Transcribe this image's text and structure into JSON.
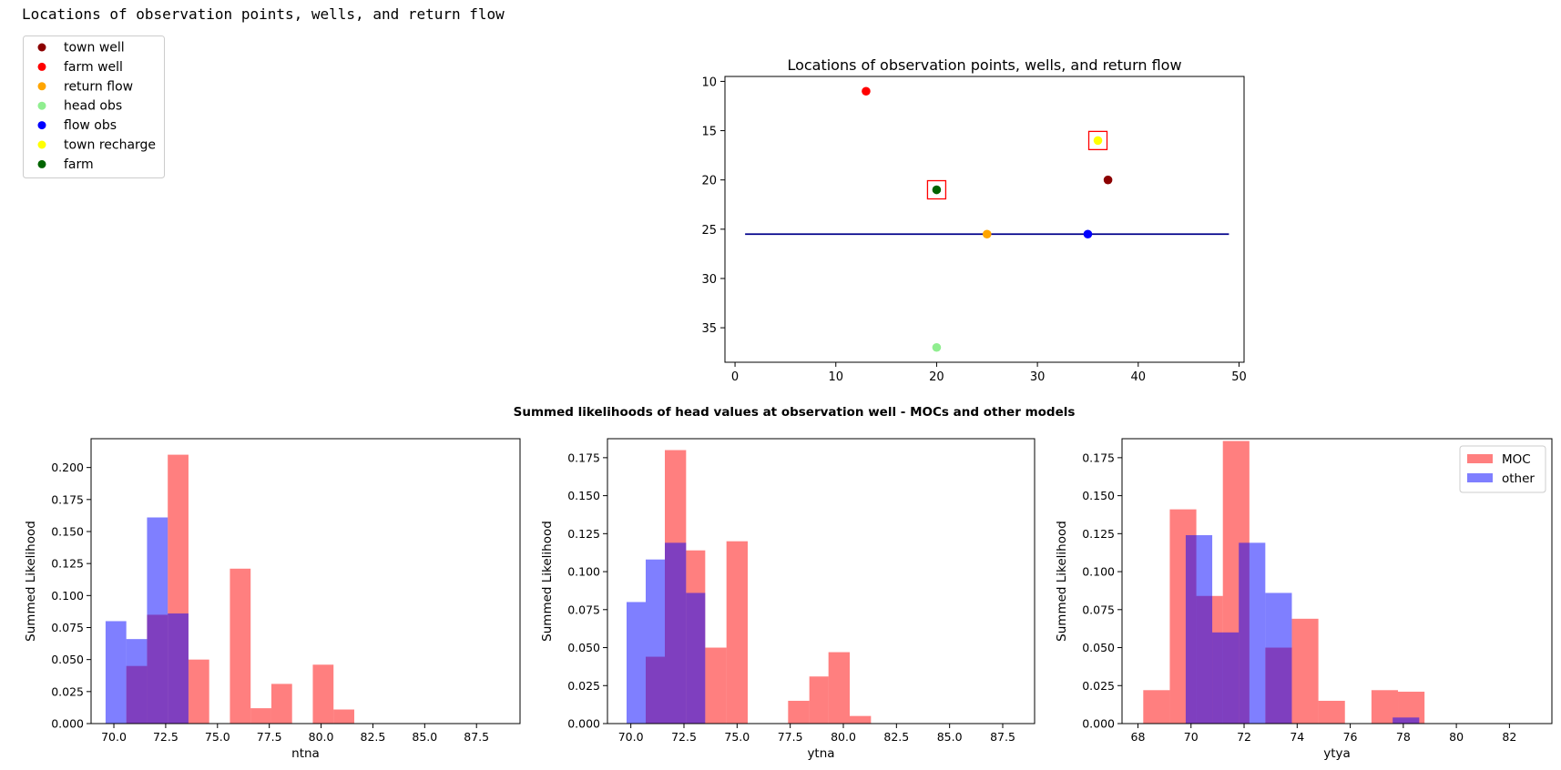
{
  "page": {
    "heading": "Locations of observation points, wells, and return flow"
  },
  "chart_data": [
    {
      "type": "legend",
      "entries": [
        {
          "label": "town well",
          "color": "#8b0000"
        },
        {
          "label": "farm well",
          "color": "#ff0000"
        },
        {
          "label": "return flow",
          "color": "#ffa500"
        },
        {
          "label": "head obs",
          "color": "#90ee90"
        },
        {
          "label": "flow obs",
          "color": "#0000ff"
        },
        {
          "label": "town recharge",
          "color": "#ffff00"
        },
        {
          "label": "farm",
          "color": "#006400"
        }
      ]
    },
    {
      "type": "scatter",
      "title": "Locations of observation points, wells, and return flow",
      "xlim": [
        -1,
        50.5
      ],
      "ylim": [
        38.5,
        9.5
      ],
      "y_inverted": true,
      "xticks": [
        0,
        10,
        20,
        30,
        40,
        50
      ],
      "yticks": [
        10,
        15,
        20,
        25,
        30,
        35
      ],
      "points": [
        {
          "label": "town well",
          "x": 37,
          "y": 20,
          "color": "#8b0000",
          "highlighted": false
        },
        {
          "label": "farm well",
          "x": 13,
          "y": 11,
          "color": "#ff0000",
          "highlighted": false
        },
        {
          "label": "return flow",
          "x": 25,
          "y": 25.5,
          "color": "#ffa500",
          "highlighted": false
        },
        {
          "label": "head obs",
          "x": 20,
          "y": 37,
          "color": "#90ee90",
          "highlighted": false
        },
        {
          "label": "flow obs",
          "x": 35,
          "y": 25.5,
          "color": "#0000ff",
          "highlighted": false
        },
        {
          "label": "town recharge",
          "x": 36,
          "y": 16,
          "color": "#ffff00",
          "highlighted": true
        },
        {
          "label": "farm",
          "x": 20,
          "y": 21,
          "color": "#006400",
          "highlighted": true
        }
      ],
      "line": {
        "x": [
          1,
          49
        ],
        "y": [
          25.5,
          25.5
        ],
        "color": "#00008b"
      },
      "highlight_color": "#ff0000"
    },
    {
      "type": "bar",
      "suptitle": "Summed likelihoods of head values at observation well - MOCs and other models",
      "panels": [
        {
          "xlabel": "ntna",
          "ylabel": "Summed Likelihood",
          "xlim": [
            68.9,
            89.6
          ],
          "ylim": [
            0,
            0.2225
          ],
          "xticks": [
            70.0,
            72.5,
            75.0,
            77.5,
            80.0,
            82.5,
            85.0,
            87.5
          ],
          "xtick_labels": [
            "70.0",
            "72.5",
            "75.0",
            "77.5",
            "80.0",
            "82.5",
            "85.0",
            "87.5"
          ],
          "yticks": [
            0,
            0.025,
            0.05,
            0.075,
            0.1,
            0.125,
            0.15,
            0.175,
            0.2
          ],
          "ytick_labels": [
            "0.000",
            "0.025",
            "0.050",
            "0.075",
            "0.100",
            "0.125",
            "0.150",
            "0.175",
            "0.200"
          ],
          "series": [
            {
              "name": "MOC",
              "color": "#ff0000",
              "alpha": 0.5,
              "bins": [
                [
                  70.6,
                  71.6,
                  0.045
                ],
                [
                  71.6,
                  72.6,
                  0.085
                ],
                [
                  72.6,
                  73.6,
                  0.21
                ],
                [
                  73.6,
                  74.6,
                  0.05
                ],
                [
                  75.6,
                  76.6,
                  0.121
                ],
                [
                  76.6,
                  77.6,
                  0.012
                ],
                [
                  77.6,
                  78.6,
                  0.031
                ],
                [
                  79.6,
                  80.6,
                  0.046
                ],
                [
                  80.6,
                  81.6,
                  0.011
                ]
              ]
            },
            {
              "name": "other",
              "color": "#0000ff",
              "alpha": 0.5,
              "bins": [
                [
                  69.6,
                  70.6,
                  0.08
                ],
                [
                  70.6,
                  71.6,
                  0.066
                ],
                [
                  71.6,
                  72.6,
                  0.161
                ],
                [
                  72.6,
                  73.6,
                  0.086
                ]
              ]
            }
          ]
        },
        {
          "xlabel": "ytna",
          "ylabel": "Summed Likelihood",
          "xlim": [
            68.9,
            89.0
          ],
          "ylim": [
            0,
            0.1875
          ],
          "xticks": [
            70.0,
            72.5,
            75.0,
            77.5,
            80.0,
            82.5,
            85.0,
            87.5
          ],
          "xtick_labels": [
            "70.0",
            "72.5",
            "75.0",
            "77.5",
            "80.0",
            "82.5",
            "85.0",
            "87.5"
          ],
          "yticks": [
            0,
            0.025,
            0.05,
            0.075,
            0.1,
            0.125,
            0.15,
            0.175
          ],
          "ytick_labels": [
            "0.000",
            "0.025",
            "0.050",
            "0.075",
            "0.100",
            "0.125",
            "0.150",
            "0.175"
          ],
          "series": [
            {
              "name": "MOC",
              "color": "#ff0000",
              "alpha": 0.5,
              "bins": [
                [
                  70.7,
                  71.6,
                  0.044
                ],
                [
                  71.6,
                  72.6,
                  0.18
                ],
                [
                  72.6,
                  73.5,
                  0.114
                ],
                [
                  73.5,
                  74.5,
                  0.05
                ],
                [
                  74.5,
                  75.5,
                  0.12
                ],
                [
                  77.4,
                  78.4,
                  0.015
                ],
                [
                  78.4,
                  79.3,
                  0.031
                ],
                [
                  79.3,
                  80.3,
                  0.047
                ],
                [
                  80.3,
                  81.3,
                  0.005
                ]
              ]
            },
            {
              "name": "other",
              "color": "#0000ff",
              "alpha": 0.5,
              "bins": [
                [
                  69.8,
                  70.7,
                  0.08
                ],
                [
                  70.7,
                  71.6,
                  0.108
                ],
                [
                  71.6,
                  72.6,
                  0.119
                ],
                [
                  72.6,
                  73.5,
                  0.086
                ]
              ]
            }
          ]
        },
        {
          "xlabel": "ytya",
          "ylabel": "Summed Likelihood",
          "xlim": [
            67.4,
            83.6
          ],
          "ylim": [
            0,
            0.1875
          ],
          "xticks": [
            68,
            70,
            72,
            74,
            76,
            78,
            80,
            82
          ],
          "xtick_labels": [
            "68",
            "70",
            "72",
            "74",
            "76",
            "78",
            "80",
            "82"
          ],
          "yticks": [
            0,
            0.025,
            0.05,
            0.075,
            0.1,
            0.125,
            0.15,
            0.175
          ],
          "ytick_labels": [
            "0.000",
            "0.025",
            "0.050",
            "0.075",
            "0.100",
            "0.125",
            "0.150",
            "0.175"
          ],
          "legend": [
            "MOC",
            "other"
          ],
          "series": [
            {
              "name": "MOC",
              "color": "#ff0000",
              "alpha": 0.5,
              "bins": [
                [
                  68.2,
                  69.2,
                  0.022
                ],
                [
                  69.2,
                  70.2,
                  0.141
                ],
                [
                  70.2,
                  71.2,
                  0.084
                ],
                [
                  71.2,
                  72.2,
                  0.186
                ],
                [
                  72.8,
                  73.8,
                  0.05
                ],
                [
                  73.8,
                  74.8,
                  0.069
                ],
                [
                  74.8,
                  75.8,
                  0.015
                ],
                [
                  76.8,
                  77.8,
                  0.022
                ],
                [
                  77.8,
                  78.8,
                  0.021
                ]
              ]
            },
            {
              "name": "other",
              "color": "#0000ff",
              "alpha": 0.5,
              "bins": [
                [
                  69.8,
                  70.8,
                  0.124
                ],
                [
                  70.8,
                  71.8,
                  0.06
                ],
                [
                  71.8,
                  72.8,
                  0.119
                ],
                [
                  72.8,
                  73.8,
                  0.086
                ],
                [
                  77.6,
                  78.6,
                  0.004
                ]
              ]
            }
          ]
        }
      ]
    }
  ]
}
